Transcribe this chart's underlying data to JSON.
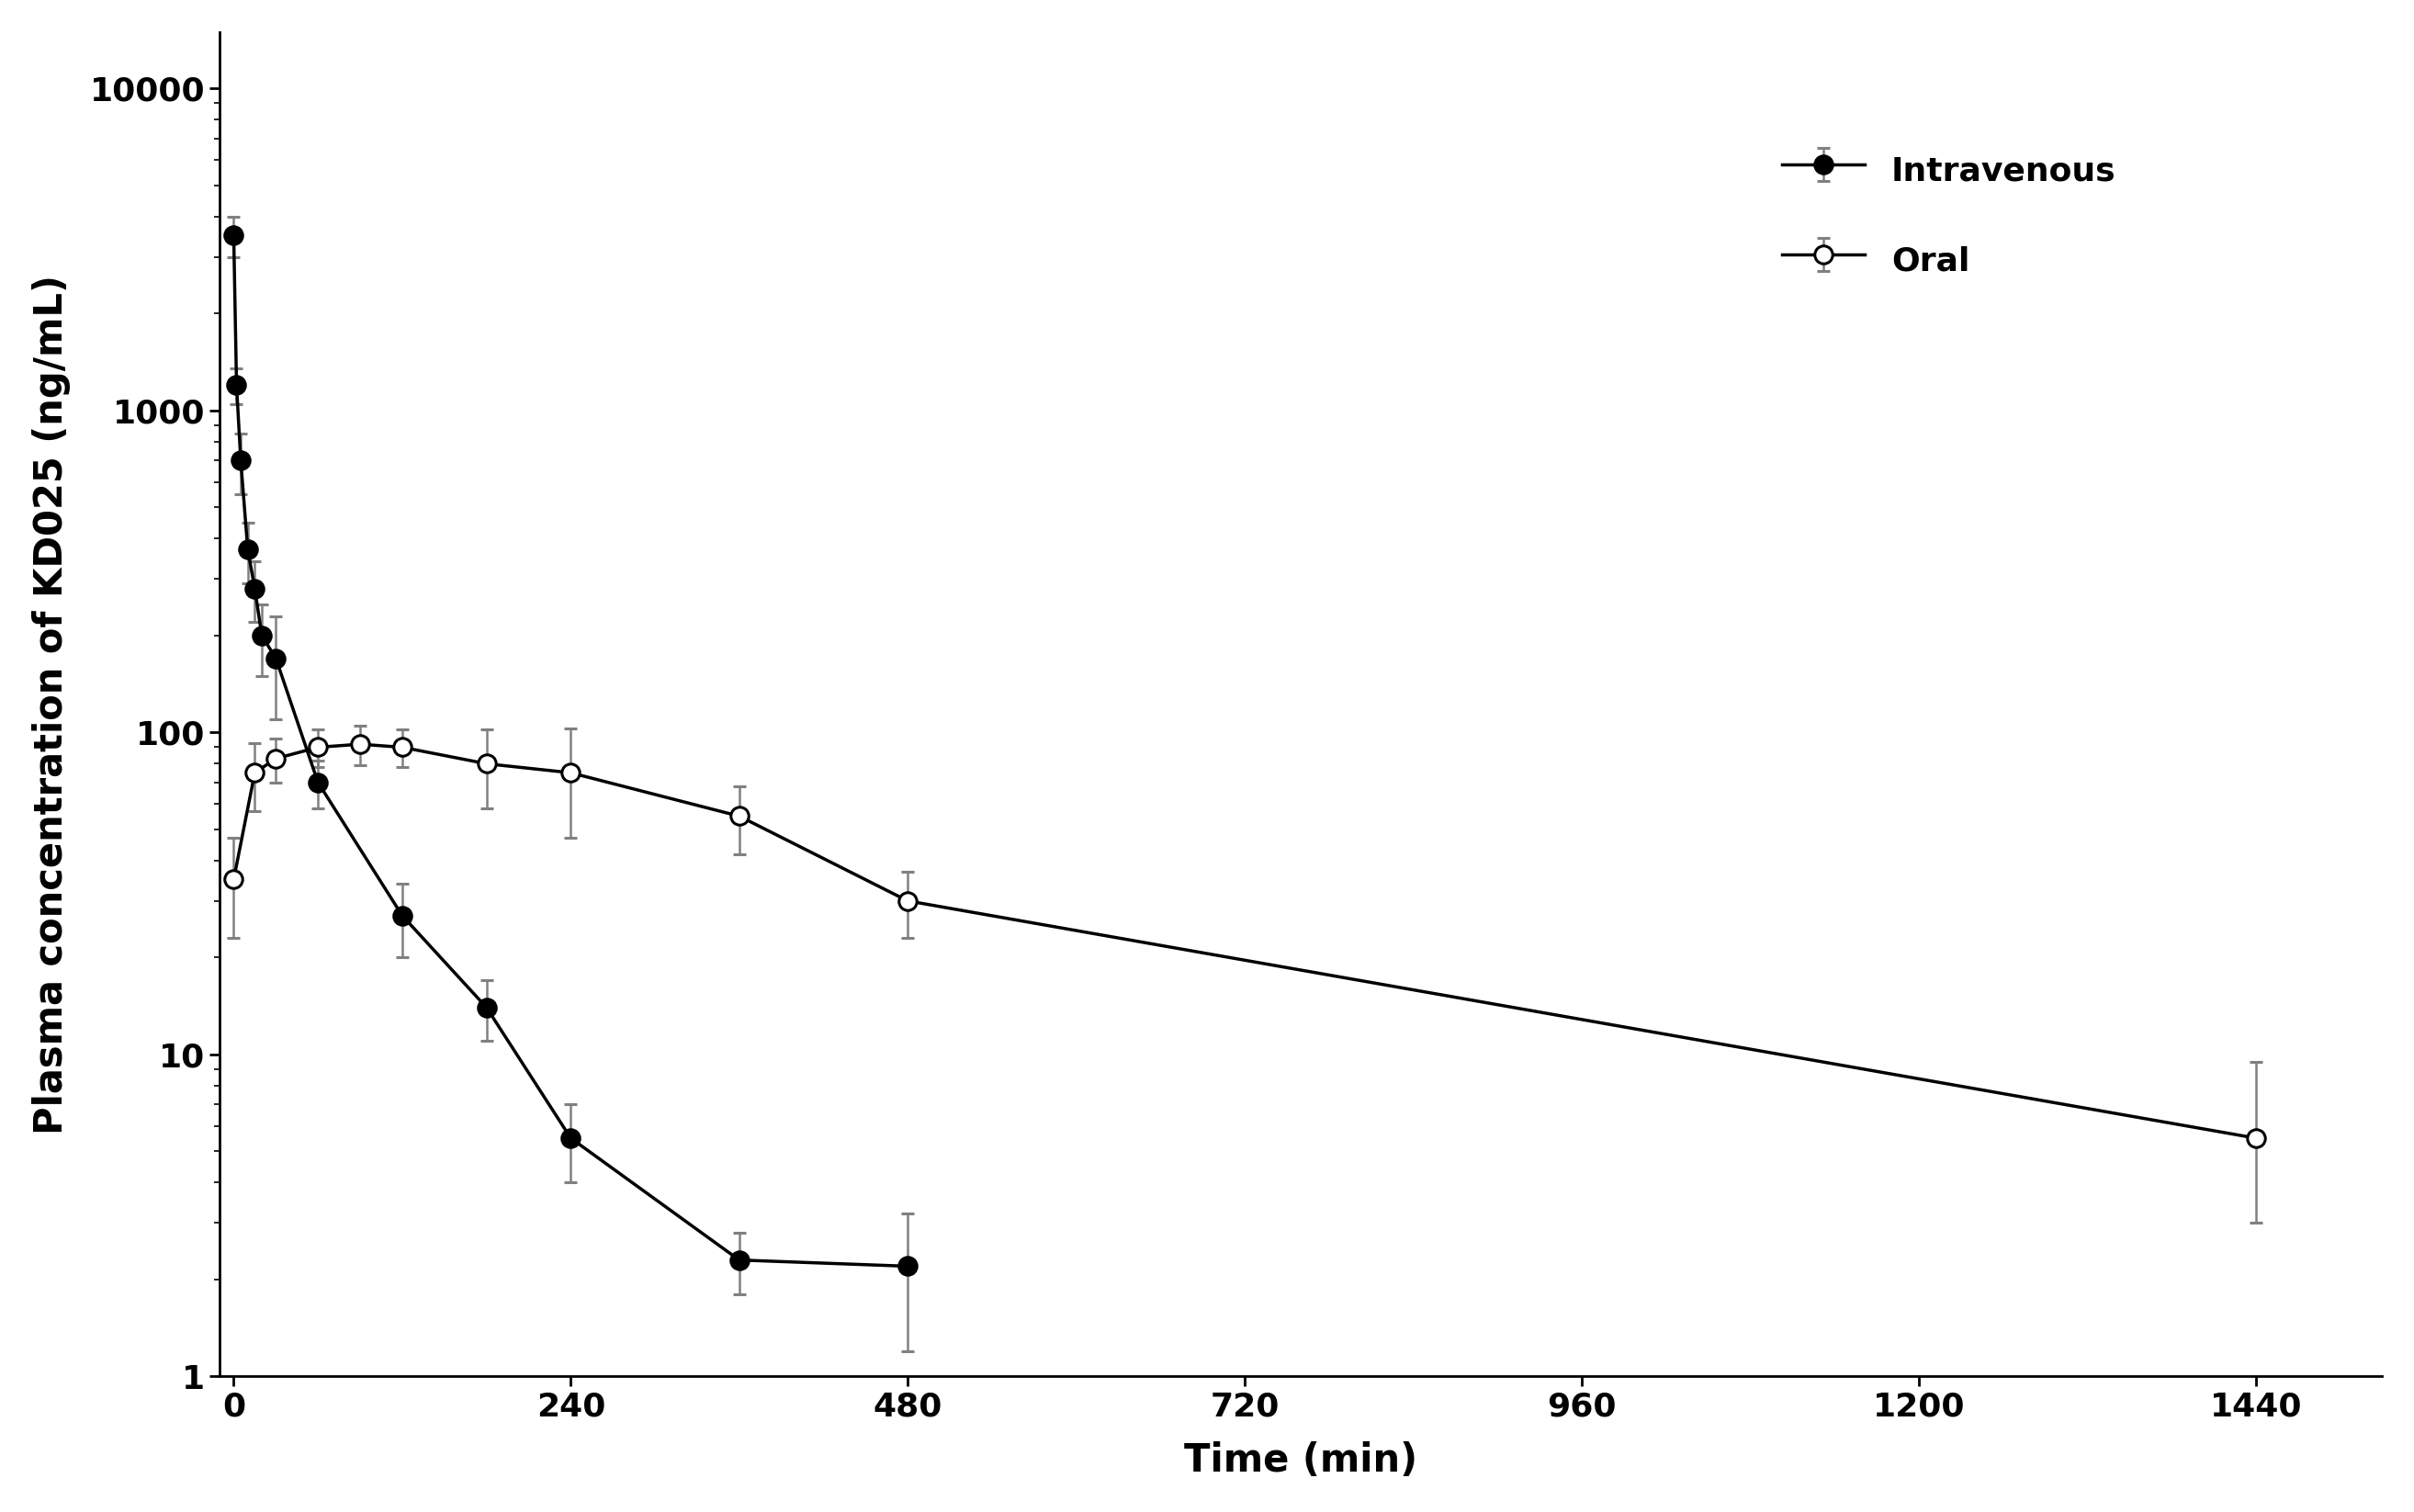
{
  "iv_x": [
    0,
    2,
    5,
    10,
    15,
    20,
    30,
    60,
    120,
    180,
    240,
    360,
    480
  ],
  "iv_y": [
    3500,
    1200,
    700,
    370,
    280,
    200,
    170,
    70,
    27,
    14,
    5.5,
    2.3,
    2.2
  ],
  "iv_yerr_low": [
    500,
    150,
    150,
    80,
    60,
    50,
    60,
    12,
    7,
    3,
    1.5,
    0.5,
    1.0
  ],
  "iv_yerr_high": [
    500,
    150,
    150,
    80,
    60,
    50,
    60,
    12,
    7,
    3,
    1.5,
    0.5,
    1.0
  ],
  "oral_x": [
    0,
    15,
    30,
    60,
    90,
    120,
    180,
    240,
    360,
    480,
    1440
  ],
  "oral_y": [
    35,
    75,
    83,
    90,
    92,
    90,
    80,
    75,
    55,
    30,
    5.5
  ],
  "oral_yerr_low": [
    12,
    18,
    13,
    12,
    13,
    12,
    22,
    28,
    13,
    7,
    2.5
  ],
  "oral_yerr_high": [
    12,
    18,
    13,
    12,
    13,
    12,
    22,
    28,
    13,
    7,
    4.0
  ],
  "xlabel": "Time (min)",
  "ylabel": "Plasma concentration of KD025 (ng/mL)",
  "legend_iv": "Intravenous",
  "legend_oral": "Oral",
  "xlim": [
    -10,
    1530
  ],
  "ylim": [
    1,
    15000
  ],
  "xticks": [
    0,
    240,
    480,
    720,
    960,
    1200,
    1440
  ],
  "yticks": [
    1,
    10,
    100,
    1000,
    10000
  ],
  "background_color": "#ffffff",
  "line_color": "#000000",
  "error_color": "#808080",
  "markersize": 14,
  "linewidth": 2.5,
  "elinewidth": 1.8,
  "capsize": 5,
  "capthick": 1.8,
  "markeredgewidth": 2.2,
  "xlabel_fontsize": 30,
  "ylabel_fontsize": 30,
  "tick_labelsize": 26,
  "legend_fontsize": 26
}
